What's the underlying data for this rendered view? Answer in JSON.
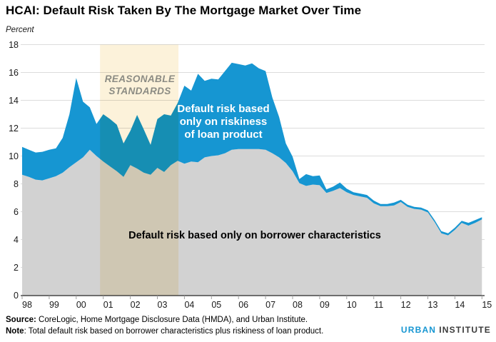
{
  "title": "HCAI: Default Risk Taken By The Mortgage Market Over Time",
  "unit_label": "Percent",
  "annotations": {
    "band_label": "REASONABLE\nSTANDARDS",
    "loan_label": "Default risk based\nonly on riskiness\nof loan product",
    "borrower_label": "Default risk based only  on borrower characteristics"
  },
  "footer": {
    "source_label": "Source:",
    "source_text": " CoreLogic, Home Mortgage Disclosure Data (HMDA), and Urban Institute.",
    "note_label": "Note",
    "note_text": ": Total default risk based on borrower characteristics plus riskiness of loan product."
  },
  "logo": {
    "part1": "URBAN",
    "part2": "INSTITUTE"
  },
  "chart_data": {
    "type": "area",
    "title": "HCAI: Default Risk Taken By The Mortgage Market Over Time",
    "xlabel": "",
    "ylabel": "Percent",
    "ylim": [
      0,
      18
    ],
    "grid": true,
    "y_ticks": [
      0,
      2,
      4,
      6,
      8,
      10,
      12,
      14,
      16,
      18
    ],
    "x_tick_labels": [
      "98",
      "99",
      "00",
      "01",
      "02",
      "03",
      "04",
      "05",
      "06",
      "07",
      "08",
      "09",
      "10",
      "11",
      "12",
      "13",
      "14",
      "15"
    ],
    "x_start_year": 1998,
    "x_step_years": 0.25,
    "colors": {
      "product_area": "#1696d2",
      "borrower_area": "#d2d2d2",
      "band_fill": "#fcf2da",
      "gridline": "#dcdcdc",
      "axis": "#262626",
      "tick": "#9f9f9f"
    },
    "band": {
      "label": "REASONABLE STANDARDS",
      "x_from": 2000.88,
      "x_to": 2003.78
    },
    "series": [
      {
        "name": "Total default risk (borrower characteristics plus riskiness of loan product)",
        "values": [
          10.65,
          10.45,
          10.25,
          10.3,
          10.45,
          10.55,
          11.3,
          13.0,
          15.6,
          13.9,
          13.5,
          12.3,
          13.0,
          12.65,
          12.25,
          10.9,
          11.8,
          12.95,
          11.9,
          10.8,
          12.65,
          13.0,
          12.9,
          13.8,
          15.05,
          14.7,
          15.9,
          15.4,
          15.55,
          15.5,
          16.1,
          16.7,
          16.6,
          16.5,
          16.65,
          16.3,
          16.1,
          14.2,
          12.8,
          10.9,
          9.95,
          8.35,
          8.7,
          8.55,
          8.6,
          7.6,
          7.8,
          8.1,
          7.65,
          7.4,
          7.3,
          7.2,
          6.8,
          6.55,
          6.55,
          6.65,
          6.85,
          6.5,
          6.35,
          6.3,
          6.1,
          5.4,
          4.6,
          4.45,
          4.85,
          5.35,
          5.2,
          5.4,
          5.6
        ]
      },
      {
        "name": "Default risk based only on borrower characteristics",
        "values": [
          8.65,
          8.5,
          8.3,
          8.25,
          8.4,
          8.55,
          8.8,
          9.2,
          9.55,
          9.9,
          10.45,
          10.0,
          9.6,
          9.25,
          8.9,
          8.5,
          9.35,
          9.1,
          8.8,
          8.65,
          9.15,
          8.85,
          9.35,
          9.65,
          9.45,
          9.6,
          9.55,
          9.9,
          10.0,
          10.05,
          10.2,
          10.45,
          10.5,
          10.5,
          10.5,
          10.5,
          10.45,
          10.2,
          9.9,
          9.5,
          8.9,
          8.05,
          7.85,
          7.95,
          7.9,
          7.35,
          7.5,
          7.7,
          7.4,
          7.2,
          7.1,
          7.0,
          6.6,
          6.4,
          6.4,
          6.45,
          6.7,
          6.35,
          6.2,
          6.15,
          5.95,
          5.25,
          4.45,
          4.3,
          4.7,
          5.2,
          5.0,
          5.2,
          5.45
        ]
      }
    ]
  }
}
